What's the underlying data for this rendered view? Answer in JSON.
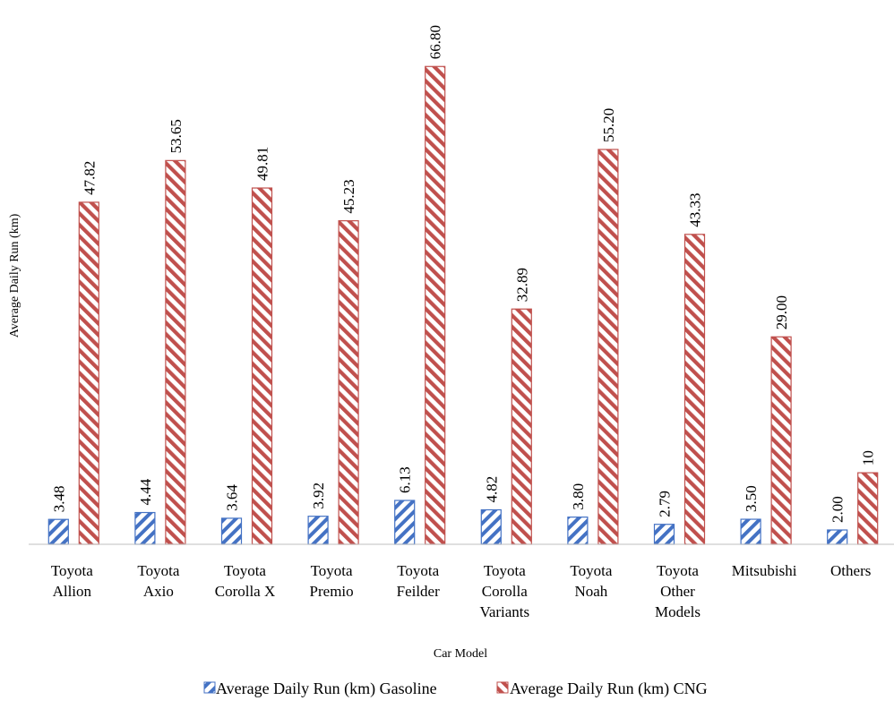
{
  "colors": {
    "gasoline": "#4472c4",
    "cng": "#c0504d",
    "axis": "#bfbfbf"
  },
  "chart_data": {
    "type": "bar",
    "title": "",
    "xlabel": "Car Model",
    "ylabel": "Average Daily Run (km)",
    "ylim": [
      0,
      70
    ],
    "grid": false,
    "legend_position": "bottom",
    "categories": [
      [
        "Toyota",
        "Allion"
      ],
      [
        "Toyota",
        "Axio"
      ],
      [
        "Toyota",
        "Corolla X"
      ],
      [
        "Toyota",
        "Premio"
      ],
      [
        "Toyota",
        "Feilder"
      ],
      [
        "Toyota",
        "Corolla",
        "Variants"
      ],
      [
        "Toyota",
        "Noah"
      ],
      [
        "Toyota",
        "Other",
        "Models"
      ],
      [
        "Mitsubishi"
      ],
      [
        "Others"
      ]
    ],
    "series": [
      {
        "name": "Average Daily Run (km) Gasoline",
        "values": [
          3.48,
          4.44,
          3.64,
          3.92,
          6.13,
          4.82,
          3.8,
          2.79,
          3.5,
          2.0
        ],
        "labels": [
          "3.48",
          "4.44",
          "3.64",
          "3.92",
          "6.13",
          "4.82",
          "3.80",
          "2.79",
          "3.50",
          "2.00"
        ]
      },
      {
        "name": "Average Daily Run (km) CNG",
        "values": [
          47.82,
          53.65,
          49.81,
          45.23,
          66.8,
          32.89,
          55.2,
          43.33,
          29.0,
          10
        ],
        "labels": [
          "47.82",
          "53.65",
          "49.81",
          "45.23",
          "66.80",
          "32.89",
          "55.20",
          "43.33",
          "29.00",
          "10"
        ]
      }
    ]
  }
}
